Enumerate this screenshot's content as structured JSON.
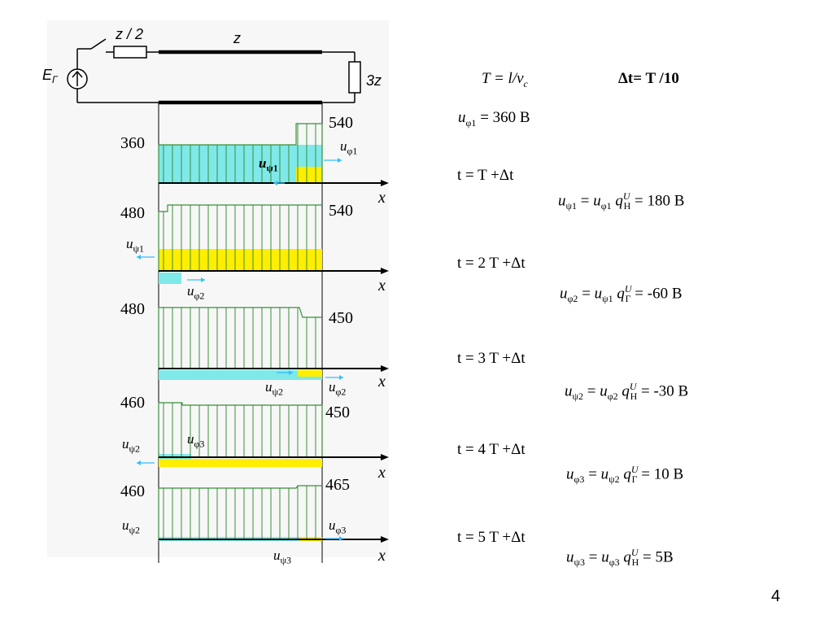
{
  "circuit": {
    "source_label": "E",
    "source_sub": "Г",
    "r1_label": "z / 2",
    "line_label": "z",
    "load_label": "3z"
  },
  "formulas": {
    "T_def": "T = l/v",
    "T_def_sub": "c",
    "dt_def": "Δt= T /10",
    "u_phi1": "= 360 В",
    "t_steps": [
      "t = T +Δt",
      "t = 2 T +Δt",
      "t = 3 T +Δt",
      "t = 4 T +Δt",
      "t = 5 T +Δt"
    ],
    "results": [
      {
        "lhs_sub": "ψ1",
        "rhs1_sub": "φ1",
        "q_sub": "Н",
        "value": "= 180 В"
      },
      {
        "lhs_sub": "φ2",
        "rhs1_sub": "ψ1",
        "q_sub": "Г",
        "value": "= -60 В"
      },
      {
        "lhs_sub": "ψ2",
        "rhs1_sub": "φ2",
        "q_sub": "Н",
        "value": "= -30 В"
      },
      {
        "lhs_sub": "φ3",
        "rhs1_sub": "ψ2",
        "q_sub": "Г",
        "value": "= 10 В"
      },
      {
        "lhs_sub": "ψ3",
        "rhs1_sub": "φ3",
        "q_sub": "Н",
        "value": "= 5В"
      }
    ]
  },
  "panels": [
    {
      "left_value": "360",
      "right_value": "540",
      "labels": [
        "uφ1",
        "uψ1"
      ]
    },
    {
      "left_value": "480",
      "right_value": "540",
      "labels": [
        "uψ1",
        "uφ2"
      ]
    },
    {
      "left_value": "480",
      "right_value": "450",
      "labels": [
        "uψ2",
        "uφ2"
      ]
    },
    {
      "left_value": "460",
      "right_value": "450",
      "labels": [
        "uψ2",
        "uφ3"
      ]
    },
    {
      "left_value": "460",
      "right_value": "465",
      "labels": [
        "uψ2",
        "uφ3",
        "uψ3"
      ]
    }
  ],
  "axis_label": "x",
  "page_number": "4",
  "colors": {
    "cyan": "#7fe8e8",
    "yellow": "#ffee00",
    "green": "#3a8f3a",
    "arrow": "#30c0ff"
  }
}
